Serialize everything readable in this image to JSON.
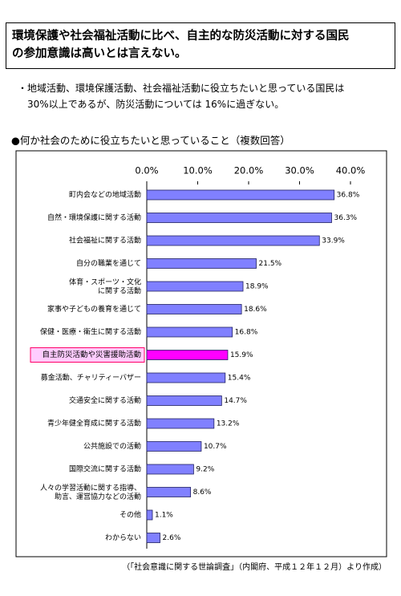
{
  "header": {
    "summary": "環境保護や社会福祉活動に比べ、自主的な防災活動に対する国民\nの参加意識は高いとは言えない。"
  },
  "note": "・地域活動、環境保護活動、社会福祉活動に役立ちたいと思っている国民は\n　30%以上であるが、防災活動については 16%に過ぎない。",
  "chart_data": {
    "type": "bar",
    "orientation": "horizontal",
    "title": "●何か社会のために役立ちたいと思っていること（複数回答）",
    "categories": [
      "町内会などの地域活動",
      "自然・環境保護に関する活動",
      "社会福祉に関する活動",
      "自分の職業を通じて",
      "体育・スポーツ・文化\nに関する活動",
      "家事や子どもの養育を通じて",
      "保健・医療・衛生に関する活動",
      "自主防災活動や災害援助活動",
      "募金活動、チャリティーバザー",
      "交通安全に関する活動",
      "青少年健全育成に関する活動",
      "公共施設での活動",
      "国際交流に関する活動",
      "人々の学習活動に関する指導、\n助言、運営協力などの活動",
      "その他",
      "わからない"
    ],
    "values": [
      36.8,
      36.3,
      33.9,
      21.5,
      18.9,
      18.6,
      16.8,
      15.9,
      15.4,
      14.7,
      13.2,
      10.7,
      9.2,
      8.6,
      1.1,
      2.6
    ],
    "value_labels": [
      "36.8%",
      "36.3%",
      "33.9%",
      "21.5%",
      "18.9%",
      "18.6%",
      "16.8%",
      "15.9%",
      "15.4%",
      "14.7%",
      "13.2%",
      "10.7%",
      "9.2%",
      "8.6%",
      "1.1%",
      "2.6%"
    ],
    "color": "#8080ff",
    "highlight_color": "#ff00ff",
    "highlight_index": 7,
    "xlim": [
      0,
      40
    ],
    "xticks": [
      {
        "value": 0,
        "label": "0.0%"
      },
      {
        "value": 10,
        "label": "10.0%"
      },
      {
        "value": 20,
        "label": "20.0%"
      },
      {
        "value": 30,
        "label": "30.0%"
      },
      {
        "value": 40,
        "label": "40.0%"
      }
    ]
  },
  "source": "（「社会意識に関する世論調査」（内閣府、平成１２年１２月）より作成）"
}
